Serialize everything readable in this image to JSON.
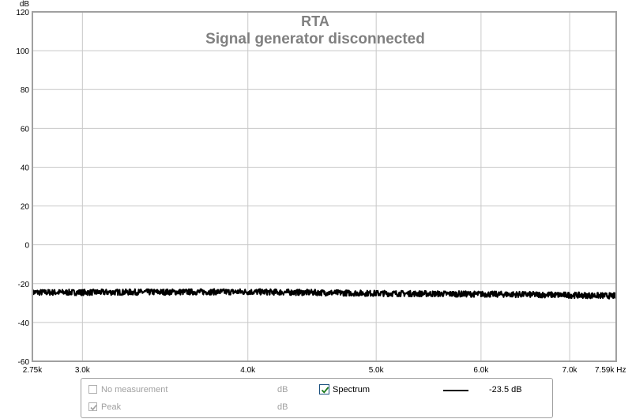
{
  "chart_data": {
    "type": "line",
    "title": "RTA",
    "subtitle": "Signal generator disconnected",
    "ylabel": "dB",
    "xunit": "Hz",
    "xscale": "log",
    "xlim": [
      2750,
      7590
    ],
    "ylim": [
      -60,
      120
    ],
    "yticks": [
      120,
      100,
      80,
      60,
      40,
      20,
      0,
      -20,
      -40,
      -60
    ],
    "xticks": [
      {
        "value": 2750,
        "label": "2.75k"
      },
      {
        "value": 3000,
        "label": "3.0k"
      },
      {
        "value": 4000,
        "label": "4.0k"
      },
      {
        "value": 5000,
        "label": "5.0k"
      },
      {
        "value": 6000,
        "label": "6.0k"
      },
      {
        "value": 7000,
        "label": "7.0k"
      },
      {
        "value": 7590,
        "label": "7.59k Hz"
      }
    ],
    "grid": true,
    "series": [
      {
        "name": "Spectrum",
        "color": "#000000",
        "x": [
          2750,
          3000,
          3500,
          4000,
          4500,
          5000,
          5500,
          6000,
          6500,
          7000,
          7590
        ],
        "y": [
          -24.5,
          -24.5,
          -24.3,
          -24.2,
          -24.6,
          -25.0,
          -25.2,
          -25.4,
          -25.6,
          -25.9,
          -26.3
        ],
        "noise_band_db": 3
      }
    ]
  },
  "legend": {
    "rows": [
      {
        "label": "No measurement",
        "unit": "dB",
        "checked": false,
        "enabled": false
      },
      {
        "label": "Peak",
        "unit": "dB",
        "checked": true,
        "enabled": false
      }
    ],
    "spectrum": {
      "label": "Spectrum",
      "checked": true,
      "value": "-23.5 dB"
    }
  },
  "colors": {
    "grid": "#c8c8c8",
    "axis_text": "#000000",
    "title": "#808080",
    "frame": "#a0a0a0"
  }
}
